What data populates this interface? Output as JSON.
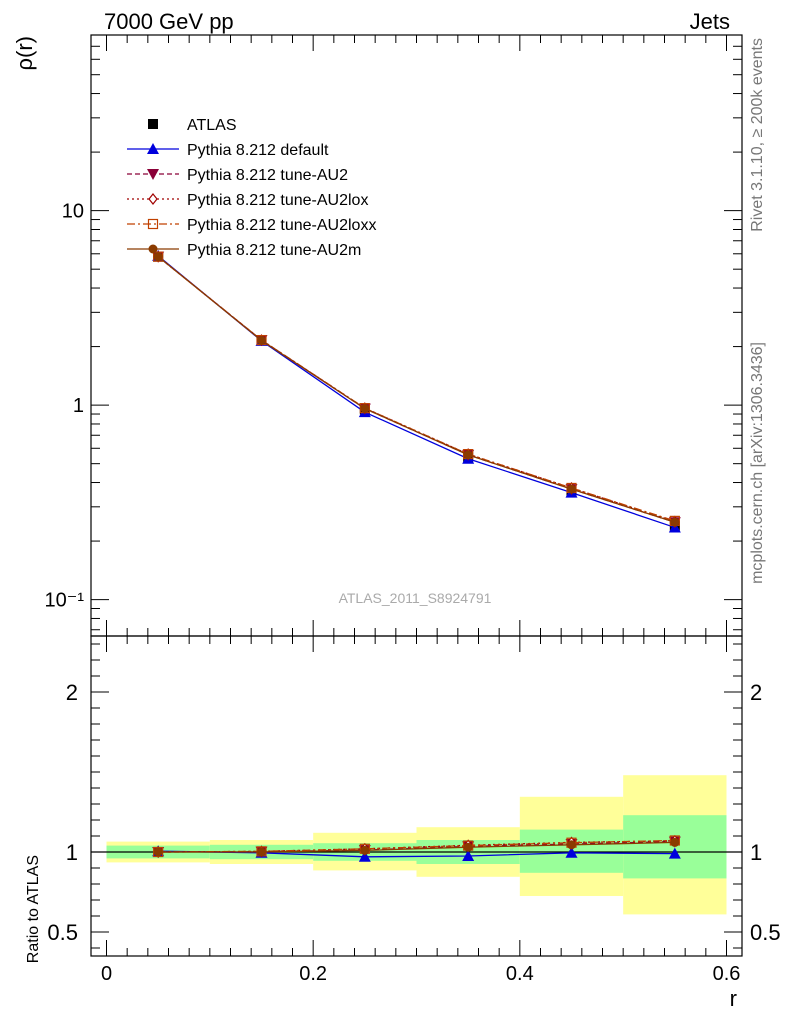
{
  "header": {
    "left": "7000 GeV pp",
    "right": "Jets"
  },
  "side_text": {
    "rivet": "Rivet 3.1.10, ≥ 200k events",
    "mcplots": "mcplots.cern.ch [arXiv:1306.3436]"
  },
  "watermark": "ATLAS_2011_S8924791",
  "colors": {
    "atlas": "#000000",
    "default": "#0000dd",
    "au2": "#8b0038",
    "au2lox": "#a00000",
    "au2loxx": "#c04000",
    "au2m": "#8b3b00",
    "band_inner": "#99ff99",
    "band_outer": "#ffff99"
  },
  "chart_data": [
    {
      "type": "line",
      "panel": "main",
      "ylabel": "ρ(r)",
      "yscale": "log",
      "ylim": [
        0.065,
        80
      ],
      "xlim": [
        -0.015,
        0.615
      ],
      "ytick_labels": [
        "10⁻¹",
        "1",
        "10"
      ],
      "x": [
        0.05,
        0.15,
        0.25,
        0.35,
        0.45,
        0.55
      ],
      "series": [
        {
          "name": "ATLAS",
          "values": [
            5.8,
            2.15,
            0.95,
            0.54,
            0.36,
            0.24
          ]
        },
        {
          "name": "Pythia 8.212 default",
          "values": [
            5.85,
            2.14,
            0.92,
            0.53,
            0.355,
            0.235
          ]
        },
        {
          "name": "Pythia 8.212 tune-AU2",
          "values": [
            5.8,
            2.16,
            0.96,
            0.555,
            0.37,
            0.25
          ]
        },
        {
          "name": "Pythia 8.212 tune-AU2lox",
          "values": [
            5.8,
            2.16,
            0.965,
            0.56,
            0.375,
            0.252
          ]
        },
        {
          "name": "Pythia 8.212 tune-AU2loxx",
          "values": [
            5.8,
            2.16,
            0.965,
            0.56,
            0.375,
            0.254
          ]
        },
        {
          "name": "Pythia 8.212 tune-AU2m",
          "values": [
            5.8,
            2.15,
            0.96,
            0.555,
            0.37,
            0.25
          ]
        }
      ]
    },
    {
      "type": "line",
      "panel": "ratio",
      "ylabel": "Ratio to ATLAS",
      "xlabel": "r",
      "ylim": [
        0.35,
        2.35
      ],
      "xlim": [
        -0.015,
        0.615
      ],
      "xtick_labels": [
        "0",
        "0.2",
        "0.4",
        "0.6"
      ],
      "ytick_labels": [
        "0.5",
        "1",
        "2"
      ],
      "bins": [
        [
          0.0,
          0.1
        ],
        [
          0.1,
          0.2
        ],
        [
          0.2,
          0.3
        ],
        [
          0.3,
          0.4
        ],
        [
          0.4,
          0.5
        ],
        [
          0.5,
          0.6
        ]
      ],
      "band_inner": [
        [
          0.96,
          1.04
        ],
        [
          0.955,
          1.045
        ],
        [
          0.945,
          1.055
        ],
        [
          0.925,
          1.075
        ],
        [
          0.87,
          1.14
        ],
        [
          0.835,
          1.23
        ]
      ],
      "band_outer": [
        [
          0.935,
          1.065
        ],
        [
          0.925,
          1.075
        ],
        [
          0.885,
          1.12
        ],
        [
          0.845,
          1.155
        ],
        [
          0.725,
          1.345
        ],
        [
          0.61,
          1.48
        ]
      ],
      "x": [
        0.05,
        0.15,
        0.25,
        0.35,
        0.45,
        0.55
      ],
      "series": [
        {
          "name": "Pythia 8.212 default",
          "values": [
            1.005,
            0.995,
            0.97,
            0.975,
            0.995,
            0.99
          ]
        },
        {
          "name": "Pythia 8.212 tune-AU2",
          "values": [
            1.0,
            1.002,
            1.012,
            1.035,
            1.05,
            1.065
          ]
        },
        {
          "name": "Pythia 8.212 tune-AU2lox",
          "values": [
            1.0,
            1.004,
            1.02,
            1.042,
            1.06,
            1.07
          ]
        },
        {
          "name": "Pythia 8.212 tune-AU2loxx",
          "values": [
            1.0,
            1.004,
            1.02,
            1.04,
            1.058,
            1.072
          ]
        },
        {
          "name": "Pythia 8.212 tune-AU2m",
          "values": [
            1.0,
            1.0,
            1.01,
            1.03,
            1.045,
            1.06
          ]
        }
      ]
    }
  ]
}
